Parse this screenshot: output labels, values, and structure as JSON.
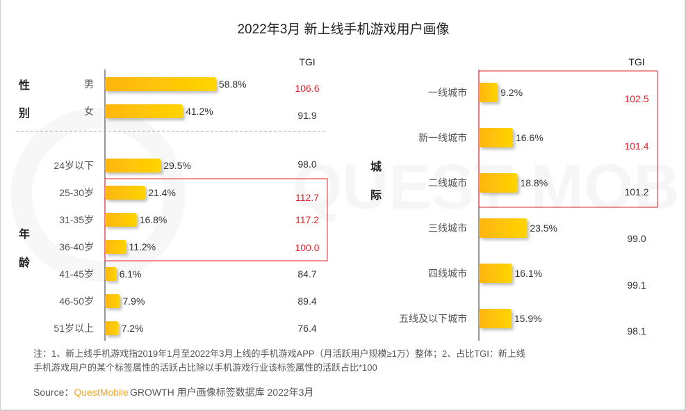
{
  "chart_data": [
    {
      "type": "bar",
      "orientation": "horizontal",
      "title": "2022年3月 新上线手机游戏用户画像",
      "tgi_header": "TGI",
      "groups": [
        {
          "label": "性别",
          "chars": [
            "性",
            "别"
          ],
          "categories": [
            "男",
            "女"
          ],
          "values": [
            58.8,
            41.2
          ],
          "value_labels": [
            "58.8%",
            "41.2%"
          ],
          "tgi": [
            "106.6",
            "91.9"
          ],
          "highlight": [
            true,
            false
          ]
        },
        {
          "label": "年龄",
          "chars": [
            "年",
            "龄"
          ],
          "categories": [
            "24岁以下",
            "25-30岁",
            "31-35岁",
            "36-40岁",
            "41-45岁",
            "46-50岁",
            "51岁以上"
          ],
          "values": [
            29.5,
            21.4,
            16.8,
            11.2,
            6.1,
            7.9,
            7.2
          ],
          "value_labels": [
            "29.5%",
            "21.4%",
            "16.8%",
            "11.2%",
            "6.1%",
            "7.9%",
            "7.2%"
          ],
          "tgi": [
            "98.0",
            "112.7",
            "117.2",
            "100.0",
            "84.7",
            "89.4",
            "76.4"
          ],
          "highlight": [
            false,
            true,
            true,
            true,
            false,
            false,
            false
          ]
        }
      ]
    },
    {
      "type": "bar",
      "orientation": "horizontal",
      "tgi_header": "TGI",
      "groups": [
        {
          "label": "城际",
          "chars": [
            "城",
            "际"
          ],
          "categories": [
            "一线城市",
            "新一线城市",
            "二线城市",
            "三线城市",
            "四线城市",
            "五线及以下城市"
          ],
          "values": [
            9.2,
            16.6,
            18.8,
            23.5,
            16.1,
            15.9
          ],
          "value_labels": [
            "9.2%",
            "16.6%",
            "18.8%",
            "23.5%",
            "16.1%",
            "15.9%"
          ],
          "tgi": [
            "102.5",
            "101.4",
            "101.2",
            "99.0",
            "99.1",
            "98.1"
          ],
          "highlight": [
            true,
            true,
            false,
            false,
            false,
            false
          ]
        }
      ]
    }
  ],
  "notes": {
    "line1": "注：1、新上线手机游戏指2019年1月至2022年3月上线的手机游戏APP（月活跃用户规模≥1万）整体；2、占比TGI：新上线",
    "line2": "手机游戏用户的某个标签属性的活跃占比除以手机游戏行业该标签属性的活跃占比*100"
  },
  "source": {
    "prefix": "Source：",
    "brand": "QuestMobile",
    "rest": "GROWTH 用户画像标签数据库 2022年3月"
  },
  "watermark": "QUEST MOBILE",
  "colors": {
    "bar_start": "#FFB300",
    "bar_end": "#FFD200",
    "highlight": "#E8202A",
    "text": "#333333",
    "brand": "#F5A623"
  }
}
